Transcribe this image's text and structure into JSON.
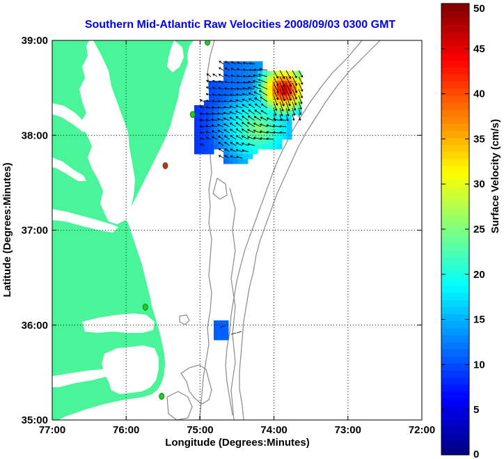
{
  "chart_data": {
    "type": "map",
    "title": "Southern Mid-Atlantic Raw Velocities 2008/09/03 0300 GMT",
    "xlabel": "Longitude (Degrees:Minutes)",
    "ylabel": "Latitude (Degrees:Minutes)",
    "xlim": [
      -77,
      -72
    ],
    "ylim": [
      35,
      39
    ],
    "x_ticks": [
      {
        "value": -77,
        "label": "77:00"
      },
      {
        "value": -76,
        "label": "76:00"
      },
      {
        "value": -75,
        "label": "75:00"
      },
      {
        "value": -74,
        "label": "74:00"
      },
      {
        "value": -73,
        "label": "73:00"
      },
      {
        "value": -72,
        "label": "72:00"
      }
    ],
    "y_ticks": [
      {
        "value": 35,
        "label": "35:00"
      },
      {
        "value": 36,
        "label": "36:00"
      },
      {
        "value": 37,
        "label": "37:00"
      },
      {
        "value": 38,
        "label": "38:00"
      },
      {
        "value": 39,
        "label": "39:00"
      }
    ],
    "grid": "dotted",
    "colorbar": {
      "label": "Surface Velocity (cm/s)",
      "min": 0,
      "max": 50,
      "colormap": "jet",
      "ticks": [
        {
          "value": 0,
          "label": "0"
        },
        {
          "value": 5,
          "label": "5"
        },
        {
          "value": 10,
          "label": "10"
        },
        {
          "value": 15,
          "label": "15"
        },
        {
          "value": 20,
          "label": "20"
        },
        {
          "value": 25,
          "label": "25"
        },
        {
          "value": 30,
          "label": "30"
        },
        {
          "value": 35,
          "label": "35"
        },
        {
          "value": 40,
          "label": "40"
        },
        {
          "value": 45,
          "label": "45"
        },
        {
          "value": 50,
          "label": "50"
        }
      ]
    },
    "stations": [
      {
        "lon": -74.9,
        "lat": 38.98,
        "status": "active"
      },
      {
        "lon": -75.1,
        "lat": 38.22,
        "status": "active"
      },
      {
        "lon": -75.47,
        "lat": 37.68,
        "status": "inactive"
      },
      {
        "lon": -75.74,
        "lat": 36.19,
        "status": "active"
      },
      {
        "lon": -75.52,
        "lat": 35.25,
        "status": "active"
      }
    ],
    "colors": {
      "land": "#4af59a",
      "water": "#ffffff",
      "bathymetry": "#888888",
      "title": "#0000ee",
      "station_active": "#22cc22",
      "station_inactive": "#dd2222"
    }
  }
}
